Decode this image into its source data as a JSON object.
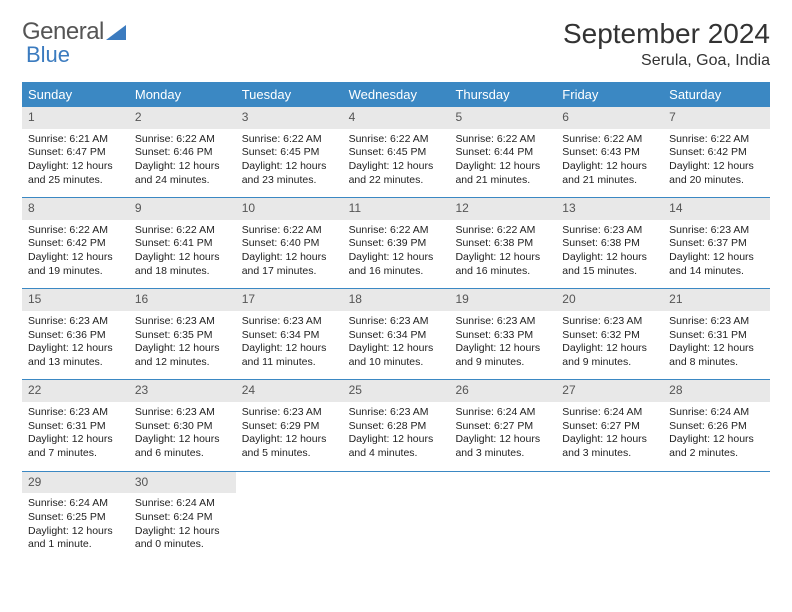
{
  "brand": {
    "word1": "General",
    "word2": "Blue"
  },
  "title": "September 2024",
  "location": "Serula, Goa, India",
  "colors": {
    "header_bg": "#3b88c3",
    "header_text": "#ffffff",
    "daynum_bg": "#e8e8e8",
    "border": "#3b88c3",
    "logo_gray": "#555555",
    "logo_blue": "#3b7bbf"
  },
  "day_names": [
    "Sunday",
    "Monday",
    "Tuesday",
    "Wednesday",
    "Thursday",
    "Friday",
    "Saturday"
  ],
  "layout": {
    "start_offset": 0,
    "days_in_month": 30,
    "rows": 5,
    "cols": 7
  },
  "days": [
    {
      "n": 1,
      "sunrise": "6:21 AM",
      "sunset": "6:47 PM",
      "daylight": "12 hours and 25 minutes."
    },
    {
      "n": 2,
      "sunrise": "6:22 AM",
      "sunset": "6:46 PM",
      "daylight": "12 hours and 24 minutes."
    },
    {
      "n": 3,
      "sunrise": "6:22 AM",
      "sunset": "6:45 PM",
      "daylight": "12 hours and 23 minutes."
    },
    {
      "n": 4,
      "sunrise": "6:22 AM",
      "sunset": "6:45 PM",
      "daylight": "12 hours and 22 minutes."
    },
    {
      "n": 5,
      "sunrise": "6:22 AM",
      "sunset": "6:44 PM",
      "daylight": "12 hours and 21 minutes."
    },
    {
      "n": 6,
      "sunrise": "6:22 AM",
      "sunset": "6:43 PM",
      "daylight": "12 hours and 21 minutes."
    },
    {
      "n": 7,
      "sunrise": "6:22 AM",
      "sunset": "6:42 PM",
      "daylight": "12 hours and 20 minutes."
    },
    {
      "n": 8,
      "sunrise": "6:22 AM",
      "sunset": "6:42 PM",
      "daylight": "12 hours and 19 minutes."
    },
    {
      "n": 9,
      "sunrise": "6:22 AM",
      "sunset": "6:41 PM",
      "daylight": "12 hours and 18 minutes."
    },
    {
      "n": 10,
      "sunrise": "6:22 AM",
      "sunset": "6:40 PM",
      "daylight": "12 hours and 17 minutes."
    },
    {
      "n": 11,
      "sunrise": "6:22 AM",
      "sunset": "6:39 PM",
      "daylight": "12 hours and 16 minutes."
    },
    {
      "n": 12,
      "sunrise": "6:22 AM",
      "sunset": "6:38 PM",
      "daylight": "12 hours and 16 minutes."
    },
    {
      "n": 13,
      "sunrise": "6:23 AM",
      "sunset": "6:38 PM",
      "daylight": "12 hours and 15 minutes."
    },
    {
      "n": 14,
      "sunrise": "6:23 AM",
      "sunset": "6:37 PM",
      "daylight": "12 hours and 14 minutes."
    },
    {
      "n": 15,
      "sunrise": "6:23 AM",
      "sunset": "6:36 PM",
      "daylight": "12 hours and 13 minutes."
    },
    {
      "n": 16,
      "sunrise": "6:23 AM",
      "sunset": "6:35 PM",
      "daylight": "12 hours and 12 minutes."
    },
    {
      "n": 17,
      "sunrise": "6:23 AM",
      "sunset": "6:34 PM",
      "daylight": "12 hours and 11 minutes."
    },
    {
      "n": 18,
      "sunrise": "6:23 AM",
      "sunset": "6:34 PM",
      "daylight": "12 hours and 10 minutes."
    },
    {
      "n": 19,
      "sunrise": "6:23 AM",
      "sunset": "6:33 PM",
      "daylight": "12 hours and 9 minutes."
    },
    {
      "n": 20,
      "sunrise": "6:23 AM",
      "sunset": "6:32 PM",
      "daylight": "12 hours and 9 minutes."
    },
    {
      "n": 21,
      "sunrise": "6:23 AM",
      "sunset": "6:31 PM",
      "daylight": "12 hours and 8 minutes."
    },
    {
      "n": 22,
      "sunrise": "6:23 AM",
      "sunset": "6:31 PM",
      "daylight": "12 hours and 7 minutes."
    },
    {
      "n": 23,
      "sunrise": "6:23 AM",
      "sunset": "6:30 PM",
      "daylight": "12 hours and 6 minutes."
    },
    {
      "n": 24,
      "sunrise": "6:23 AM",
      "sunset": "6:29 PM",
      "daylight": "12 hours and 5 minutes."
    },
    {
      "n": 25,
      "sunrise": "6:23 AM",
      "sunset": "6:28 PM",
      "daylight": "12 hours and 4 minutes."
    },
    {
      "n": 26,
      "sunrise": "6:24 AM",
      "sunset": "6:27 PM",
      "daylight": "12 hours and 3 minutes."
    },
    {
      "n": 27,
      "sunrise": "6:24 AM",
      "sunset": "6:27 PM",
      "daylight": "12 hours and 3 minutes."
    },
    {
      "n": 28,
      "sunrise": "6:24 AM",
      "sunset": "6:26 PM",
      "daylight": "12 hours and 2 minutes."
    },
    {
      "n": 29,
      "sunrise": "6:24 AM",
      "sunset": "6:25 PM",
      "daylight": "12 hours and 1 minute."
    },
    {
      "n": 30,
      "sunrise": "6:24 AM",
      "sunset": "6:24 PM",
      "daylight": "12 hours and 0 minutes."
    }
  ],
  "labels": {
    "sunrise": "Sunrise:",
    "sunset": "Sunset:",
    "daylight": "Daylight:"
  }
}
